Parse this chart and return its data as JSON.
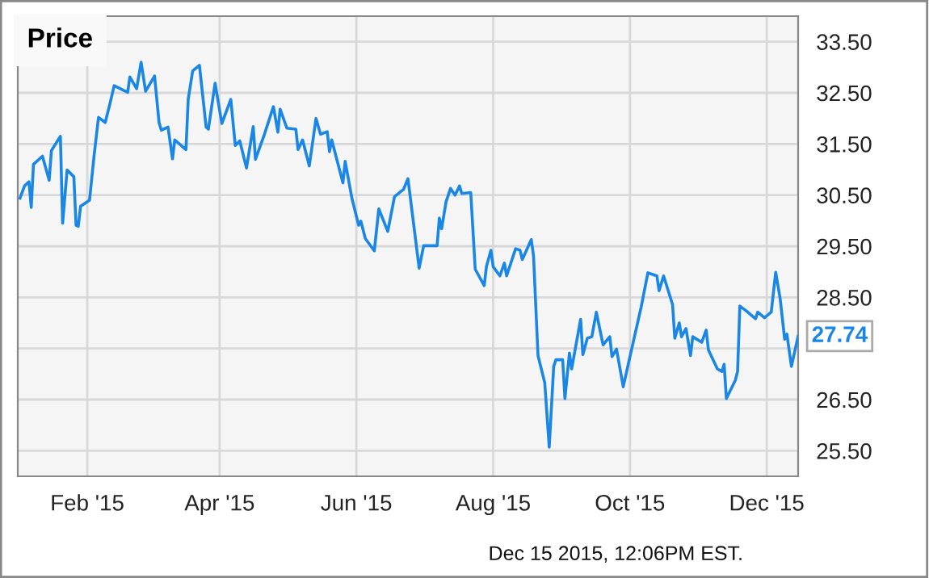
{
  "chart_data": {
    "type": "line",
    "title": "Price",
    "x": [
      "2015-01-02",
      "2015-01-04",
      "2015-01-06",
      "2015-01-07",
      "2015-01-08",
      "2015-01-12",
      "2015-01-15",
      "2015-01-16",
      "2015-01-20",
      "2015-01-21",
      "2015-01-23",
      "2015-01-26",
      "2015-01-27",
      "2015-01-28",
      "2015-01-29",
      "2015-02-02",
      "2015-02-04",
      "2015-02-06",
      "2015-02-09",
      "2015-02-11",
      "2015-02-13",
      "2015-02-19",
      "2015-02-20",
      "2015-02-23",
      "2015-02-25",
      "2015-02-27",
      "2015-03-03",
      "2015-03-05",
      "2015-03-06",
      "2015-03-09",
      "2015-03-11",
      "2015-03-12",
      "2015-03-17",
      "2015-03-18",
      "2015-03-20",
      "2015-03-23",
      "2015-03-26",
      "2015-03-27",
      "2015-03-30",
      "2015-04-02",
      "2015-04-06",
      "2015-04-08",
      "2015-04-10",
      "2015-04-13",
      "2015-04-16",
      "2015-04-17",
      "2015-04-21",
      "2015-04-25",
      "2015-04-27",
      "2015-04-28",
      "2015-05-01",
      "2015-05-05",
      "2015-05-06",
      "2015-05-08",
      "2015-05-11",
      "2015-05-14",
      "2015-05-16",
      "2015-05-19",
      "2015-05-20",
      "2015-05-21",
      "2015-05-26",
      "2015-05-27",
      "2015-05-30",
      "2015-06-02",
      "2015-06-03",
      "2015-06-05",
      "2015-06-09",
      "2015-06-11",
      "2015-06-15",
      "2015-06-18",
      "2015-06-22",
      "2015-06-24",
      "2015-06-29",
      "2015-07-01",
      "2015-07-07",
      "2015-07-08",
      "2015-07-09",
      "2015-07-11",
      "2015-07-13",
      "2015-07-15",
      "2015-07-17",
      "2015-07-18",
      "2015-07-22",
      "2015-07-24",
      "2015-07-28",
      "2015-07-29",
      "2015-07-31",
      "2015-08-01",
      "2015-08-04",
      "2015-08-06",
      "2015-08-07",
      "2015-08-11",
      "2015-08-13",
      "2015-08-14",
      "2015-08-18",
      "2015-08-19",
      "2015-08-21",
      "2015-08-24",
      "2015-08-26",
      "2015-08-28",
      "2015-08-29",
      "2015-09-01",
      "2015-09-02",
      "2015-09-04",
      "2015-09-05",
      "2015-09-09",
      "2015-09-10",
      "2015-09-12",
      "2015-09-14",
      "2015-09-16",
      "2015-09-19",
      "2015-09-22",
      "2015-09-23",
      "2015-09-25",
      "2015-09-28",
      "2015-10-01",
      "2015-10-06",
      "2015-10-09",
      "2015-10-13",
      "2015-10-14",
      "2015-10-16",
      "2015-10-20",
      "2015-10-21",
      "2015-10-23",
      "2015-10-24",
      "2015-10-26",
      "2015-10-28",
      "2015-10-29",
      "2015-11-02",
      "2015-11-04",
      "2015-11-05",
      "2015-11-09",
      "2015-11-11",
      "2015-11-12",
      "2015-11-13",
      "2015-11-17",
      "2015-11-18",
      "2015-11-19",
      "2015-11-22",
      "2015-11-26",
      "2015-11-27",
      "2015-11-30",
      "2015-12-03",
      "2015-12-05",
      "2015-12-07",
      "2015-12-09",
      "2015-12-10",
      "2015-12-12",
      "2015-12-15"
    ],
    "series": [
      {
        "color": "#1a87e6",
        "values": [
          30.44,
          30.68,
          30.76,
          30.26,
          31.1,
          31.26,
          30.79,
          31.37,
          31.65,
          29.95,
          30.99,
          30.86,
          29.91,
          29.89,
          30.28,
          30.4,
          31.26,
          32.02,
          31.92,
          32.27,
          32.64,
          32.51,
          32.81,
          32.58,
          33.1,
          32.53,
          32.83,
          31.92,
          31.77,
          31.83,
          31.21,
          31.58,
          31.39,
          32.37,
          32.93,
          33.04,
          31.83,
          31.79,
          32.69,
          31.9,
          32.37,
          31.47,
          31.56,
          31.03,
          31.84,
          31.2,
          31.69,
          32.23,
          31.73,
          32.18,
          31.81,
          31.79,
          31.39,
          31.58,
          31.07,
          32.0,
          31.69,
          31.74,
          31.35,
          31.58,
          30.74,
          31.16,
          30.44,
          29.91,
          29.99,
          29.65,
          29.41,
          30.23,
          29.79,
          30.47,
          30.61,
          30.82,
          29.07,
          29.51,
          29.51,
          30.05,
          29.84,
          30.37,
          30.63,
          30.5,
          30.68,
          30.53,
          30.55,
          29.05,
          28.73,
          29.1,
          29.42,
          29.1,
          28.92,
          29.17,
          28.92,
          29.45,
          29.42,
          29.24,
          29.63,
          29.31,
          27.36,
          26.83,
          25.57,
          27.15,
          27.28,
          27.28,
          26.52,
          27.41,
          27.1,
          28.07,
          27.38,
          27.7,
          27.73,
          28.21,
          27.57,
          27.73,
          27.34,
          27.49,
          26.75,
          27.34,
          28.31,
          28.98,
          28.92,
          28.63,
          28.92,
          28.36,
          27.7,
          28.0,
          27.73,
          27.89,
          27.36,
          27.73,
          27.62,
          27.86,
          27.47,
          27.1,
          27.05,
          27.19,
          26.52,
          26.88,
          27.05,
          28.33,
          28.23,
          28.08,
          28.21,
          28.1,
          28.21,
          28.99,
          28.47,
          27.68,
          27.78,
          27.15,
          27.74
        ]
      }
    ],
    "xlim": [
      "2015-01-01",
      "2015-12-15"
    ],
    "xticks": [
      {
        "value": "2015-02-01",
        "label": "Feb '15"
      },
      {
        "value": "2015-04-01",
        "label": "Apr '15"
      },
      {
        "value": "2015-06-01",
        "label": "Jun '15"
      },
      {
        "value": "2015-08-01",
        "label": "Aug '15"
      },
      {
        "value": "2015-10-01",
        "label": "Oct '15"
      },
      {
        "value": "2015-12-01",
        "label": "Dec '15"
      }
    ],
    "ylim": [
      25,
      34
    ],
    "yticks": [
      {
        "value": 25.5,
        "label": "25.50"
      },
      {
        "value": 26.5,
        "label": "26.50"
      },
      {
        "value": 27.5,
        "label": null
      },
      {
        "value": 28.5,
        "label": "28.50"
      },
      {
        "value": 29.5,
        "label": "29.50"
      },
      {
        "value": 30.5,
        "label": "30.50"
      },
      {
        "value": 31.5,
        "label": "31.50"
      },
      {
        "value": 32.5,
        "label": "32.50"
      },
      {
        "value": 33.5,
        "label": "33.50"
      }
    ],
    "grid": true,
    "legend": false,
    "marker": "none",
    "line_style": "solid",
    "annotations": [
      {
        "text": "27.74",
        "x": "2015-12-15",
        "y": 27.74
      },
      "Dec 15 2015, 12:06PM EST."
    ]
  }
}
